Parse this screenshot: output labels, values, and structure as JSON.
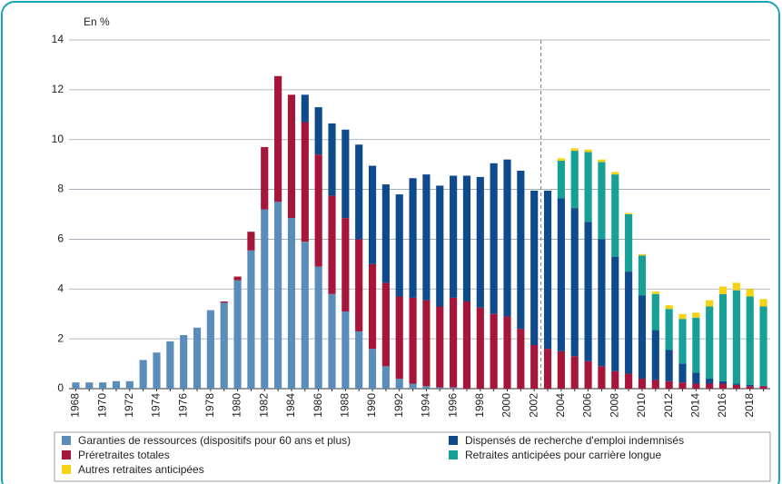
{
  "chart_data": {
    "type": "stacked_bar",
    "y_label": "En %",
    "categories": [
      "1968",
      null,
      "1970",
      null,
      "1972",
      null,
      "1974",
      null,
      "1976",
      null,
      "1978",
      null,
      "1980",
      null,
      "1982",
      null,
      "1984",
      null,
      "1986",
      null,
      "1988",
      null,
      "1990",
      null,
      "1992",
      null,
      "1994",
      null,
      "1996",
      null,
      "1998",
      null,
      "2000",
      null,
      "2002",
      null,
      "2004",
      null,
      "2006",
      null,
      "2008",
      null,
      "2010",
      null,
      "2012",
      null,
      "2014",
      null,
      "2016",
      null,
      "2018",
      null
    ],
    "series": [
      {
        "name": "Garanties de ressources (dispositifs pour 60 ans et plus)",
        "color": "#5b8dba",
        "values": [
          0.25,
          0.25,
          0.25,
          0.3,
          0.3,
          1.15,
          1.45,
          1.9,
          2.15,
          2.45,
          3.15,
          3.45,
          4.35,
          5.55,
          7.2,
          7.5,
          6.85,
          5.9,
          4.9,
          3.8,
          3.1,
          2.3,
          1.6,
          0.9,
          0.4,
          0.2,
          0.1,
          0.05,
          0.05,
          0,
          0,
          0,
          0,
          0,
          0,
          0,
          0,
          0,
          0,
          0,
          0,
          0,
          0,
          0,
          0,
          0,
          0,
          0,
          0,
          0,
          0,
          0
        ]
      },
      {
        "name": "Préretraites totales",
        "color": "#a6163a",
        "values": [
          0,
          0,
          0,
          0,
          0,
          0,
          0,
          0,
          0,
          0,
          0,
          0.05,
          0.15,
          0.75,
          2.5,
          5.05,
          4.95,
          4.8,
          4.5,
          3.95,
          3.75,
          3.7,
          3.4,
          3.35,
          3.3,
          3.45,
          3.45,
          3.25,
          3.6,
          3.5,
          3.25,
          3.0,
          2.9,
          2.4,
          1.75,
          1.6,
          1.5,
          1.3,
          1.1,
          0.9,
          0.7,
          0.6,
          0.4,
          0.35,
          0.3,
          0.25,
          0.2,
          0.2,
          0.2,
          0.15,
          0.1,
          0.1
        ]
      },
      {
        "name": "Dispensés de recherche d'emploi indemnisés",
        "color": "#0f4a8c",
        "values": [
          0,
          0,
          0,
          0,
          0,
          0,
          0,
          0,
          0,
          0,
          0,
          0,
          0,
          0,
          0,
          0,
          0,
          1.1,
          1.9,
          2.9,
          3.55,
          3.8,
          3.95,
          3.95,
          4.1,
          4.8,
          5.05,
          4.85,
          4.9,
          5.05,
          5.25,
          6.05,
          6.3,
          6.35,
          6.2,
          6.35,
          6.15,
          5.95,
          5.6,
          5.1,
          4.6,
          4.1,
          3.35,
          2.0,
          1.25,
          0.75,
          0.45,
          0.2,
          0.1,
          0.05,
          0.05,
          0.02
        ]
      },
      {
        "name": "Retraites anticipées pour carrière longue",
        "color": "#17a096",
        "values": [
          0,
          0,
          0,
          0,
          0,
          0,
          0,
          0,
          0,
          0,
          0,
          0,
          0,
          0,
          0,
          0,
          0,
          0,
          0,
          0,
          0,
          0,
          0,
          0,
          0,
          0,
          0,
          0,
          0,
          0,
          0,
          0,
          0,
          0,
          0,
          0,
          1.5,
          2.3,
          2.8,
          3.1,
          3.3,
          2.3,
          1.6,
          1.45,
          1.65,
          1.8,
          2.2,
          2.9,
          3.5,
          3.75,
          3.55,
          3.18
        ]
      },
      {
        "name": "Autres retraites anticipées",
        "color": "#f5d314",
        "values": [
          0,
          0,
          0,
          0,
          0,
          0,
          0,
          0,
          0,
          0,
          0,
          0,
          0,
          0,
          0,
          0,
          0,
          0,
          0,
          0,
          0,
          0,
          0,
          0,
          0,
          0,
          0,
          0,
          0,
          0,
          0,
          0,
          0,
          0,
          0,
          0,
          0.1,
          0.1,
          0.1,
          0.1,
          0.1,
          0.05,
          0.05,
          0.1,
          0.15,
          0.2,
          0.2,
          0.25,
          0.3,
          0.3,
          0.3,
          0.3
        ]
      }
    ],
    "ylim": [
      0,
      14
    ],
    "yticks": [
      0,
      2,
      4,
      6,
      8,
      10,
      12,
      14
    ],
    "grid": true
  }
}
